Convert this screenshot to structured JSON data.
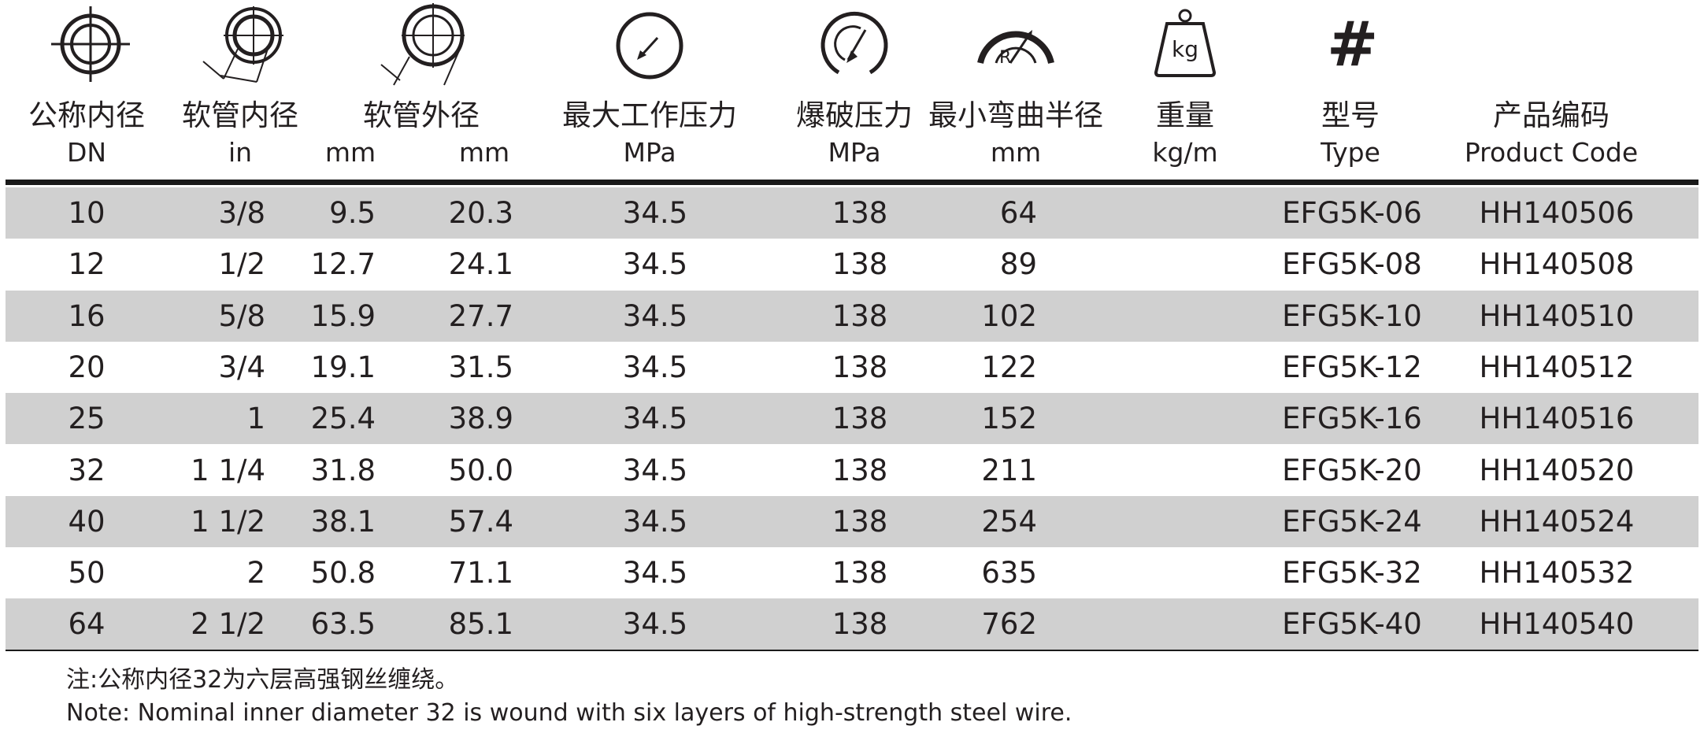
{
  "headers": [
    {
      "zh": "公称内径",
      "en": "DN"
    },
    {
      "zh": "软管内径",
      "en": "in"
    },
    {
      "zh": "软管外径",
      "en": "mm"
    },
    {
      "zh": "",
      "en": "mm"
    },
    {
      "zh": "最大工作压力",
      "en": "MPa"
    },
    {
      "zh": "爆破压力",
      "en": "MPa"
    },
    {
      "zh": "最小弯曲半径",
      "en": "mm"
    },
    {
      "zh": "重量",
      "en": "kg/m"
    },
    {
      "zh": "型号",
      "en": "Type"
    },
    {
      "zh": "产品编码",
      "en": "Product Code"
    }
  ],
  "icons": {
    "weight_label": "kg",
    "hash_symbol": "#"
  },
  "rows": [
    {
      "dn": "10",
      "in": "3/8",
      "id_mm": "9.5",
      "od_mm": "20.3",
      "wp": "34.5",
      "bp": "138",
      "bend": "64",
      "weight": "",
      "type": "EFG5K-06",
      "code": "HH140506"
    },
    {
      "dn": "12",
      "in": "1/2",
      "id_mm": "12.7",
      "od_mm": "24.1",
      "wp": "34.5",
      "bp": "138",
      "bend": "89",
      "weight": "",
      "type": "EFG5K-08",
      "code": "HH140508"
    },
    {
      "dn": "16",
      "in": "5/8",
      "id_mm": "15.9",
      "od_mm": "27.7",
      "wp": "34.5",
      "bp": "138",
      "bend": "102",
      "weight": "",
      "type": "EFG5K-10",
      "code": "HH140510"
    },
    {
      "dn": "20",
      "in": "3/4",
      "id_mm": "19.1",
      "od_mm": "31.5",
      "wp": "34.5",
      "bp": "138",
      "bend": "122",
      "weight": "",
      "type": "EFG5K-12",
      "code": "HH140512"
    },
    {
      "dn": "25",
      "in": "1",
      "id_mm": "25.4",
      "od_mm": "38.9",
      "wp": "34.5",
      "bp": "138",
      "bend": "152",
      "weight": "",
      "type": "EFG5K-16",
      "code": "HH140516"
    },
    {
      "dn": "32",
      "in": "1 1/4",
      "id_mm": "31.8",
      "od_mm": "50.0",
      "wp": "34.5",
      "bp": "138",
      "bend": "211",
      "weight": "",
      "type": "EFG5K-20",
      "code": "HH140520"
    },
    {
      "dn": "40",
      "in": "1 1/2",
      "id_mm": "38.1",
      "od_mm": "57.4",
      "wp": "34.5",
      "bp": "138",
      "bend": "254",
      "weight": "",
      "type": "EFG5K-24",
      "code": "HH140524"
    },
    {
      "dn": "50",
      "in": "2",
      "id_mm": "50.8",
      "od_mm": "71.1",
      "wp": "34.5",
      "bp": "138",
      "bend": "635",
      "weight": "",
      "type": "EFG5K-32",
      "code": "HH140532"
    },
    {
      "dn": "64",
      "in": "2 1/2",
      "id_mm": "63.5",
      "od_mm": "85.1",
      "wp": "34.5",
      "bp": "138",
      "bend": "762",
      "weight": "",
      "type": "EFG5K-40",
      "code": "HH140540"
    }
  ],
  "notes": {
    "zh": "注:公称内径32为六层高强钢丝缠绕。",
    "en": "Note: Nominal inner diameter 32 is wound with six layers of high-strength steel wire."
  },
  "colors": {
    "shade_row": "#d0d0d0",
    "text": "#231f20",
    "rule": "#1a1a1a"
  }
}
